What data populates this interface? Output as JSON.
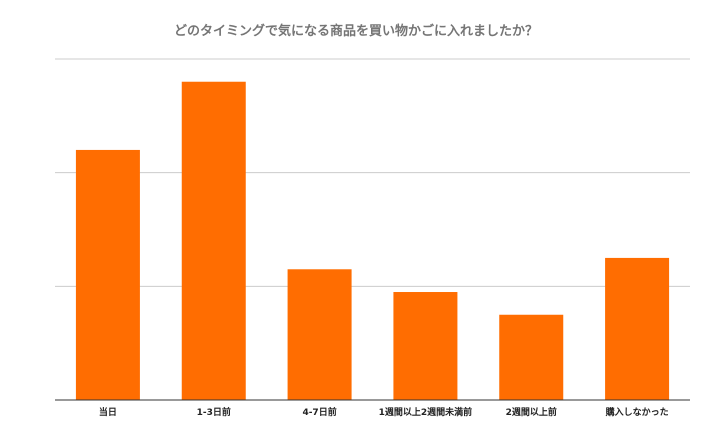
{
  "chart_data": {
    "type": "bar",
    "title": "どのタイミングで気になる商品を買い物かごに入れましたか？",
    "categories": [
      "当日",
      "1-3日前",
      "4-7日前",
      "1週間以上2週間未満前",
      "2週間以上前",
      "購入しなかった"
    ],
    "values": [
      22,
      28,
      11.5,
      9.5,
      7.5,
      12.5
    ],
    "ylim": [
      0,
      30
    ],
    "gridlines": [
      0,
      10,
      20,
      30
    ],
    "grid": true,
    "legend": "none",
    "xlabel": "",
    "ylabel": "",
    "colors": {
      "bar": "#ff6d01",
      "grid": "#cccccc",
      "axis": "#333333"
    }
  }
}
